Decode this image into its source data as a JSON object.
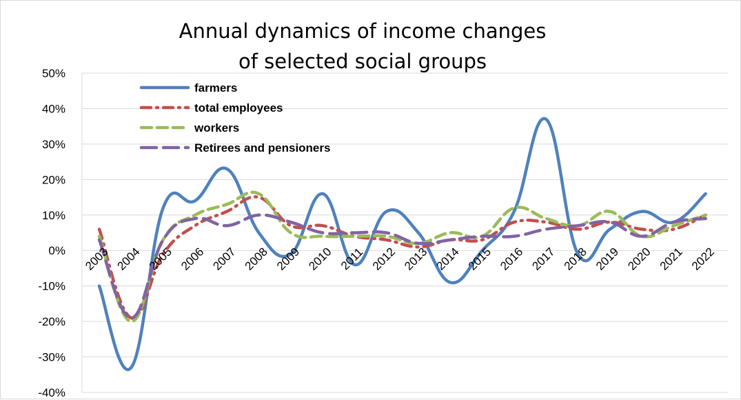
{
  "chart_data": {
    "type": "line",
    "title_lines": [
      "Annual dynamics of income changes",
      "of selected social groups"
    ],
    "xlabel": "",
    "ylabel": "",
    "x": [
      "2003",
      "2004",
      "2005",
      "2006",
      "2007",
      "2008",
      "2009",
      "2010",
      "2011",
      "2012",
      "2013",
      "2014",
      "2015",
      "2016",
      "2017",
      "2018",
      "2019",
      "2020",
      "2021",
      "2022"
    ],
    "ylim": [
      -40,
      50
    ],
    "y_ticks": [
      50,
      40,
      30,
      20,
      10,
      0,
      -10,
      -20,
      -30,
      -40
    ],
    "y_tick_labels": [
      "50%",
      "40%",
      "30%",
      "20%",
      "10%",
      "0%",
      "-10%",
      "-20%",
      "-30%",
      "-40%"
    ],
    "y_unit": "%",
    "grid": true,
    "legend_position": "top-left",
    "series": [
      {
        "name": "farmers",
        "color": "#4f81bd",
        "style": "solid",
        "values": [
          -10,
          -33,
          12,
          14,
          23,
          5,
          -1,
          16,
          -4,
          11,
          5,
          -9,
          0,
          11,
          37,
          -1,
          6,
          11,
          8,
          16
        ]
      },
      {
        "name": "total employees",
        "color": "#c0504d",
        "style": "dash-dot",
        "values": [
          6,
          -19,
          -1,
          7,
          11,
          15,
          7,
          7,
          4,
          3,
          1,
          3,
          3,
          8,
          8,
          6,
          8,
          6,
          6,
          10
        ]
      },
      {
        "name": "workers",
        "color": "#9bbb59",
        "style": "dash",
        "values": [
          4,
          -20,
          3,
          10,
          13,
          16,
          5,
          4,
          4,
          4,
          2,
          5,
          4,
          12,
          9,
          7,
          11,
          4,
          7,
          10
        ]
      },
      {
        "name": "Retirees and pensioners",
        "color": "#8064a2",
        "style": "long-dash",
        "values": [
          3,
          -19,
          3,
          9,
          7,
          10,
          8,
          5,
          5,
          5,
          2,
          3,
          4,
          4,
          6,
          7,
          8,
          4,
          8,
          9
        ]
      }
    ]
  }
}
